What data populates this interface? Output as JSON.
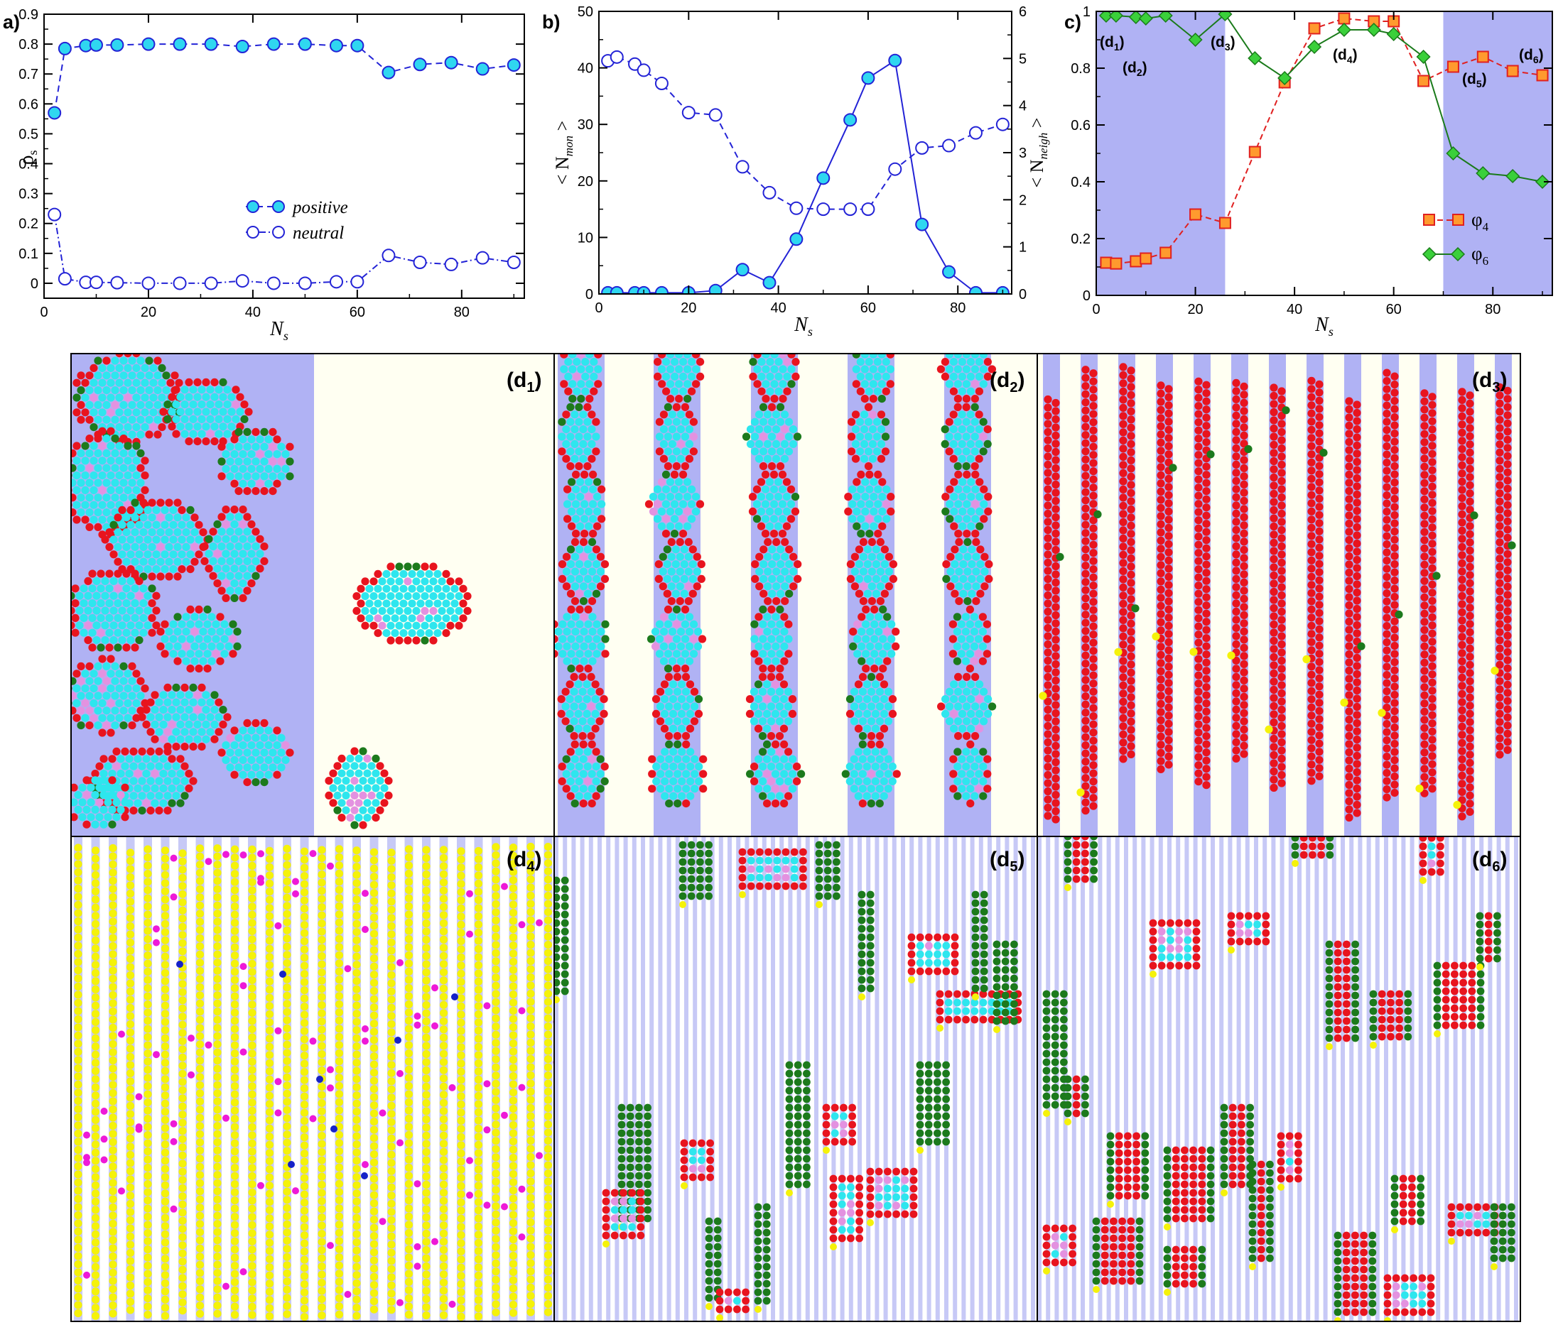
{
  "colors": {
    "positive_fill": "#2fd7f0",
    "neutral_stroke": "#2323d6",
    "phi4_fill": "#ff9a2e",
    "phi4_stroke": "#e02020",
    "phi6_fill": "#3ad03a",
    "phi6_stroke": "#1a7a1a",
    "band_blue": "#b0b2f4",
    "cream": "#fffff2",
    "stripe": "#c7c9f6",
    "bead_red": "#e8141e",
    "bead_cyan": "#2ee6ee",
    "bead_green": "#1c7a1c",
    "bead_yellow": "#f5f20a",
    "bead_pink": "#e392e0",
    "bead_magenta": "#ee19d8",
    "bead_blue": "#1622c8"
  },
  "chart_data": [
    {
      "panel": "a)",
      "type": "line",
      "xlabel": "N",
      "xlabel_sub": "s",
      "ylabel": "ρ",
      "ylabel_sub": "s",
      "xlim": [
        0,
        92
      ],
      "ylim": [
        -0.05,
        0.9
      ],
      "xticks": [
        "0",
        "20",
        "40",
        "60",
        "80"
      ],
      "yticks": [
        "0",
        "0.1",
        "0.2",
        "0.3",
        "0.4",
        "0.5",
        "0.6",
        "0.7",
        "0.8",
        "0.9"
      ],
      "series": [
        {
          "name": "positive",
          "marker": "filled-circle",
          "line": "dashed",
          "x": [
            2,
            4,
            8,
            10,
            14,
            20,
            26,
            32,
            38,
            44,
            50,
            56,
            60,
            66,
            72,
            78,
            84,
            90
          ],
          "y": [
            0.57,
            0.785,
            0.795,
            0.797,
            0.797,
            0.8,
            0.8,
            0.8,
            0.792,
            0.8,
            0.8,
            0.795,
            0.795,
            0.705,
            0.732,
            0.738,
            0.717,
            0.73
          ]
        },
        {
          "name": "neutral",
          "marker": "open-circle",
          "line": "dash-dot",
          "x": [
            2,
            4,
            8,
            10,
            14,
            20,
            26,
            32,
            38,
            44,
            50,
            56,
            60,
            66,
            72,
            78,
            84,
            90
          ],
          "y": [
            0.23,
            0.015,
            0.003,
            0.003,
            0.002,
            0.0,
            0.0,
            0.0,
            0.008,
            0.0,
            0.0,
            0.005,
            0.005,
            0.093,
            0.07,
            0.063,
            0.085,
            0.07
          ]
        }
      ],
      "legend": "lower-right"
    },
    {
      "panel": "b)",
      "type": "line",
      "xlabel": "N",
      "xlabel_sub": "s",
      "ylabel_left": "< N",
      "ylabel_left_sub": "mon",
      "ylabel_left_end": " >",
      "ylabel_right": "< N",
      "ylabel_right_sub": "neigh",
      "ylabel_right_end": " >",
      "xlim": [
        0,
        92
      ],
      "ylim_left": [
        0,
        50
      ],
      "ylim_right": [
        0,
        6
      ],
      "xticks": [
        "0",
        "20",
        "40",
        "60",
        "80"
      ],
      "yticks_left": [
        "0",
        "10",
        "20",
        "30",
        "40",
        "50"
      ],
      "yticks_right": [
        "0",
        "1",
        "2",
        "3",
        "4",
        "5",
        "6"
      ],
      "series": [
        {
          "axis": "left",
          "marker": "filled-circle",
          "line": "solid",
          "x": [
            2,
            4,
            8,
            10,
            14,
            20,
            26,
            32,
            38,
            44,
            50,
            56,
            60,
            66,
            72,
            78,
            84,
            90
          ],
          "y": [
            0.2,
            0.2,
            0.2,
            0.2,
            0.2,
            0.2,
            0.6,
            4.3,
            2.0,
            9.7,
            20.5,
            30.8,
            38.2,
            41.3,
            12.3,
            3.9,
            0.2,
            0.2
          ]
        },
        {
          "axis": "right",
          "marker": "open-circle",
          "line": "dashed",
          "x": [
            2,
            4,
            8,
            10,
            14,
            20,
            26,
            32,
            38,
            44,
            50,
            56,
            60,
            66,
            72,
            78,
            84,
            90
          ],
          "y": [
            4.95,
            5.03,
            4.88,
            4.75,
            4.47,
            3.85,
            3.8,
            2.7,
            2.15,
            1.82,
            1.8,
            1.8,
            1.8,
            2.65,
            3.1,
            3.15,
            3.42,
            3.6
          ]
        }
      ]
    },
    {
      "panel": "c)",
      "type": "line",
      "xlabel": "N",
      "xlabel_sub": "s",
      "xlim": [
        0,
        92
      ],
      "ylim": [
        0,
        1
      ],
      "xticks": [
        "0",
        "20",
        "40",
        "60",
        "80"
      ],
      "yticks": [
        "0",
        "0.2",
        "0.4",
        "0.6",
        "0.8",
        "1"
      ],
      "shaded_ranges": [
        [
          0,
          26
        ],
        [
          70,
          92
        ]
      ],
      "series": [
        {
          "name": "φ",
          "name_sub": "4",
          "marker": "square",
          "line": "dashed",
          "x": [
            2,
            4,
            8,
            10,
            14,
            20,
            26,
            32,
            38,
            44,
            50,
            56,
            60,
            66,
            72,
            78,
            84,
            90
          ],
          "y": [
            0.115,
            0.112,
            0.12,
            0.13,
            0.15,
            0.285,
            0.255,
            0.505,
            0.75,
            0.94,
            0.975,
            0.965,
            0.965,
            0.755,
            0.805,
            0.84,
            0.79,
            0.775
          ]
        },
        {
          "name": "φ",
          "name_sub": "6",
          "marker": "diamond",
          "line": "solid",
          "x": [
            2,
            4,
            8,
            10,
            14,
            20,
            26,
            32,
            38,
            44,
            50,
            56,
            60,
            66,
            72,
            78,
            84,
            90
          ],
          "y": [
            0.985,
            0.985,
            0.98,
            0.975,
            0.985,
            0.9,
            0.99,
            0.835,
            0.765,
            0.875,
            0.935,
            0.935,
            0.92,
            0.84,
            0.5,
            0.43,
            0.42,
            0.4
          ]
        }
      ],
      "point_labels": [
        {
          "text": "(d",
          "sub": "1",
          "end": ")"
        },
        {
          "text": "(d",
          "sub": "2",
          "end": ")"
        },
        {
          "text": "(d",
          "sub": "3",
          "end": ")"
        },
        {
          "text": "(d",
          "sub": "4",
          "end": ")"
        },
        {
          "text": "(d",
          "sub": "5",
          "end": ")"
        },
        {
          "text": "(d",
          "sub": "6",
          "end": ")"
        }
      ],
      "legend": "right"
    }
  ],
  "snapshots": [
    {
      "label": "(d",
      "sub": "1",
      "end": ")"
    },
    {
      "label": "(d",
      "sub": "2",
      "end": ")"
    },
    {
      "label": "(d",
      "sub": "3",
      "end": ")"
    },
    {
      "label": "(d",
      "sub": "4",
      "end": ")"
    },
    {
      "label": "(d",
      "sub": "5",
      "end": ")"
    },
    {
      "label": "(d",
      "sub": "6",
      "end": ")"
    }
  ]
}
